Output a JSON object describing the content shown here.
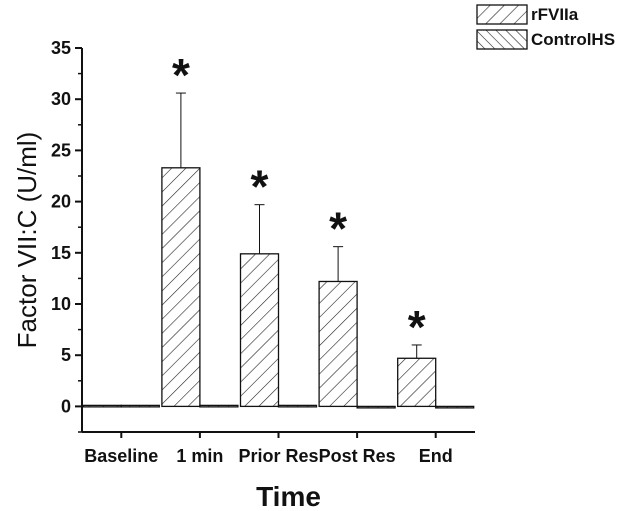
{
  "chart_data": {
    "type": "bar",
    "categories": [
      "Baseline",
      "1 min",
      "Prior Res",
      "Post Res",
      "End"
    ],
    "series": [
      {
        "name": "rFVIIa",
        "values": [
          0.1,
          23.3,
          14.9,
          12.2,
          4.7
        ],
        "error_upper": [
          0,
          7.3,
          4.8,
          3.4,
          1.3
        ],
        "significance": [
          "",
          "*",
          "*",
          "*",
          "*"
        ],
        "pattern": "diagonal-forward"
      },
      {
        "name": "ControlHS",
        "values": [
          0.1,
          0.1,
          0.1,
          0.0,
          0.0
        ],
        "error_upper": [
          0,
          0,
          0,
          0,
          0
        ],
        "significance": [
          "",
          "",
          "",
          "",
          ""
        ],
        "pattern": "diagonal-back"
      }
    ],
    "xlabel": "Time",
    "ylabel": "Factor VII:C (U/ml)",
    "ylim": [
      -2.5,
      35
    ],
    "yticks": [
      0,
      5,
      10,
      15,
      20,
      25,
      30,
      35
    ],
    "grid": false,
    "legend_position": "top-right"
  },
  "colors": {
    "axis": "#111111",
    "bar_fill": "#ffffff",
    "hatch": "#222222"
  }
}
